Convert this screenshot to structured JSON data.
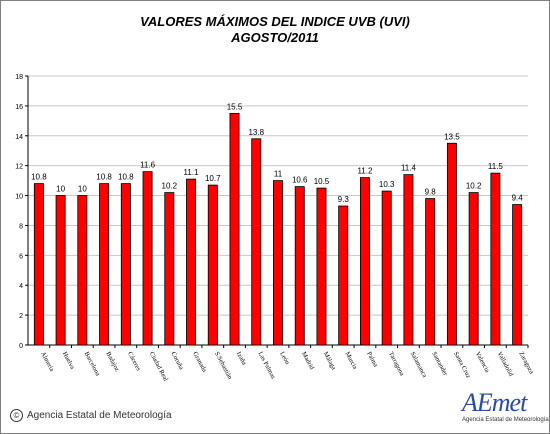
{
  "chart_data": {
    "type": "bar",
    "title": "VALORES MÁXIMOS DEL INDICE UVB (UVI)",
    "subtitle": "AGOSTO/2011",
    "categories": [
      "Almería",
      "Huelva",
      "Barcelona",
      "Badajoz",
      "Cáceres",
      "Ciudad Real",
      "Coruña",
      "Granada",
      "S.Sebastián",
      "Izaña",
      "Las Palmas",
      "León",
      "Madrid",
      "Málaga",
      "Murcia",
      "Palma",
      "Tarragona",
      "Salamanca",
      "Santander",
      "Santa Cruz",
      "Valencia",
      "Valladolid",
      "Zaragoza"
    ],
    "values": [
      10.8,
      10,
      10,
      10.8,
      10.8,
      11.6,
      10.2,
      11.1,
      10.7,
      15.5,
      13.8,
      11,
      10.6,
      10.5,
      9.3,
      11.2,
      10.3,
      11.4,
      9.8,
      13.5,
      10.2,
      11.5,
      9.4
    ],
    "value_labels": [
      "10.8",
      "10",
      "10",
      "10.8",
      "10.8",
      "11.6",
      "10.2",
      "11.1",
      "10.7",
      "15.5",
      "13.8",
      "11",
      "10.6",
      "10.5",
      "9.3",
      "11.2",
      "10.3",
      "11.4",
      "9.8",
      "13.5",
      "10.2",
      "11.5",
      "9.4"
    ],
    "ylim": [
      0,
      18
    ],
    "yticks": [
      "0",
      "2",
      "4",
      "6",
      "8",
      "10",
      "12",
      "14",
      "16",
      "18"
    ],
    "bar_color": "#ff0000",
    "bar_edge_color": "#000000",
    "grid": true,
    "legend": "none",
    "xlabel": "",
    "ylabel": ""
  },
  "footer": {
    "copyright_symbol": "©",
    "agency": "Agencia Estatal de Meteorología"
  },
  "logo": {
    "word": "AEmet",
    "sub": "Agencia Estatal de Meteorología"
  }
}
